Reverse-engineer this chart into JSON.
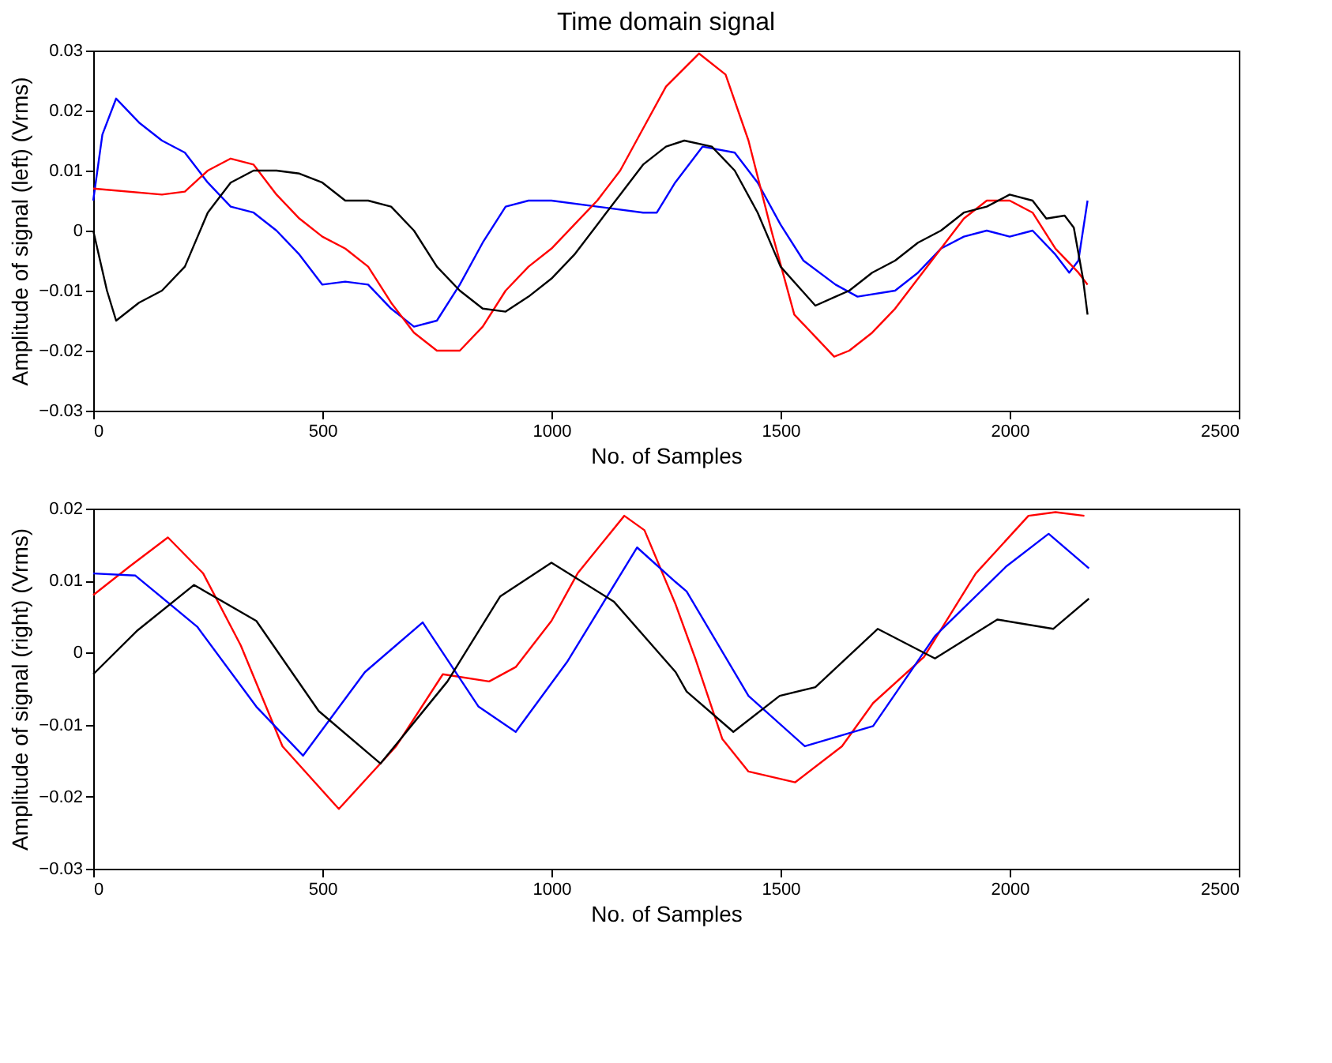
{
  "chart_data": [
    {
      "type": "line",
      "title": "Time domain signal",
      "xlabel": "No. of Samples",
      "ylabel": "Amplitude of signal (left) (Vrms)",
      "xlim": [
        0,
        2500
      ],
      "xticks": [
        0,
        500,
        1000,
        1500,
        2000,
        2500
      ],
      "ylim": [
        -0.03,
        0.03
      ],
      "yticks": [
        -0.03,
        -0.02,
        -0.01,
        0,
        0.01,
        0.02,
        0.03
      ],
      "grid": false,
      "legend": false,
      "line_style": "solid",
      "series": [
        {
          "color": "#0000ff",
          "x": [
            0,
            20,
            50,
            100,
            150,
            200,
            250,
            300,
            350,
            400,
            450,
            500,
            550,
            600,
            650,
            700,
            750,
            800,
            850,
            900,
            950,
            1000,
            1100,
            1200,
            1230,
            1270,
            1330,
            1400,
            1450,
            1500,
            1550,
            1620,
            1668,
            1750,
            1800,
            1850,
            1900,
            1950,
            2000,
            2050,
            2100,
            2130,
            2150,
            2170
          ],
          "values": [
            0.005,
            0.016,
            0.022,
            0.018,
            0.015,
            0.013,
            0.008,
            0.004,
            0.003,
            0.0,
            -0.004,
            -0.009,
            -0.0085,
            -0.009,
            -0.013,
            -0.016,
            -0.015,
            -0.009,
            -0.002,
            0.004,
            0.005,
            0.005,
            0.004,
            0.003,
            0.003,
            0.008,
            0.014,
            0.013,
            0.008,
            0.001,
            -0.005,
            -0.009,
            -0.011,
            -0.01,
            -0.007,
            -0.003,
            -0.001,
            0.0,
            -0.001,
            0.0,
            -0.004,
            -0.007,
            -0.005,
            0.005
          ]
        },
        {
          "color": "#ff0000",
          "x": [
            0,
            150,
            200,
            250,
            300,
            350,
            400,
            450,
            500,
            550,
            600,
            650,
            700,
            750,
            800,
            850,
            900,
            950,
            1000,
            1050,
            1100,
            1150,
            1200,
            1250,
            1322,
            1380,
            1430,
            1480,
            1530,
            1617,
            1650,
            1700,
            1750,
            1800,
            1850,
            1900,
            1950,
            2000,
            2050,
            2100,
            2150,
            2170
          ],
          "values": [
            0.007,
            0.006,
            0.0065,
            0.01,
            0.012,
            0.011,
            0.006,
            0.002,
            -0.001,
            -0.003,
            -0.006,
            -0.012,
            -0.017,
            -0.02,
            -0.02,
            -0.016,
            -0.01,
            -0.006,
            -0.003,
            0.001,
            0.005,
            0.01,
            0.017,
            0.024,
            0.0295,
            0.026,
            0.015,
            0.0,
            -0.014,
            -0.021,
            -0.02,
            -0.017,
            -0.013,
            -0.008,
            -0.003,
            0.002,
            0.005,
            0.005,
            0.003,
            -0.003,
            -0.007,
            -0.009
          ]
        },
        {
          "color": "#000000",
          "x": [
            0,
            30,
            50,
            100,
            150,
            200,
            250,
            300,
            350,
            400,
            450,
            500,
            550,
            600,
            650,
            700,
            750,
            800,
            850,
            900,
            950,
            1000,
            1050,
            1100,
            1150,
            1200,
            1250,
            1290,
            1350,
            1400,
            1450,
            1500,
            1576,
            1620,
            1650,
            1700,
            1750,
            1800,
            1850,
            1900,
            1950,
            2000,
            2050,
            2080,
            2120,
            2140,
            2160,
            2170
          ],
          "values": [
            0.0,
            -0.01,
            -0.015,
            -0.012,
            -0.01,
            -0.006,
            0.003,
            0.008,
            0.01,
            0.01,
            0.0095,
            0.008,
            0.005,
            0.005,
            0.004,
            0.0,
            -0.006,
            -0.01,
            -0.013,
            -0.0135,
            -0.011,
            -0.008,
            -0.004,
            0.001,
            0.006,
            0.011,
            0.014,
            0.015,
            0.014,
            0.01,
            0.003,
            -0.006,
            -0.0125,
            -0.011,
            -0.01,
            -0.007,
            -0.005,
            -0.002,
            0.0,
            0.003,
            0.004,
            0.006,
            0.005,
            0.002,
            0.0025,
            0.0005,
            -0.008,
            -0.014
          ]
        }
      ]
    },
    {
      "type": "line",
      "xlabel": "No. of Samples",
      "ylabel": "Amplitude of signal (right) (Vrms)",
      "xlim": [
        0,
        2500
      ],
      "xticks": [
        0,
        500,
        1000,
        1500,
        2000,
        2500
      ],
      "ylim": [
        -0.03,
        0.02
      ],
      "yticks": [
        -0.03,
        -0.02,
        -0.01,
        0,
        0.01,
        0.02
      ],
      "grid": false,
      "legend": false,
      "line_style": "solid",
      "series": [
        {
          "color": "#ff0000",
          "x": [
            0,
            80,
            163,
            240,
            322,
            413,
            536,
            661,
            763,
            864,
            922,
            1000,
            1057,
            1159,
            1203,
            1271,
            1315,
            1373,
            1430,
            1532,
            1634,
            1702,
            1813,
            1926,
            2041,
            2100,
            2163
          ],
          "values": [
            0.008,
            0.012,
            0.016,
            0.011,
            0.001,
            -0.013,
            -0.0217,
            -0.013,
            -0.003,
            -0.004,
            -0.002,
            0.0044,
            0.011,
            0.019,
            0.017,
            0.0067,
            -0.001,
            -0.012,
            -0.0165,
            -0.018,
            -0.013,
            -0.007,
            -0.0006,
            0.011,
            0.019,
            0.0195,
            0.019
          ]
        },
        {
          "color": "#0000ff",
          "x": [
            0,
            92,
            227,
            356,
            458,
            593,
            719,
            841,
            922,
            1034,
            1187,
            1271,
            1295,
            1430,
            1553,
            1702,
            1837,
            1993,
            2085,
            2173
          ],
          "values": [
            0.011,
            0.0107,
            0.0036,
            -0.0075,
            -0.0143,
            -0.0027,
            0.0042,
            -0.0075,
            -0.011,
            -0.0013,
            0.0146,
            0.0098,
            0.0085,
            -0.006,
            -0.013,
            -0.0102,
            0.0023,
            0.012,
            0.0165,
            0.0117
          ]
        },
        {
          "color": "#000000",
          "x": [
            0,
            95,
            220,
            356,
            492,
            627,
            773,
            888,
            1000,
            1136,
            1271,
            1295,
            1397,
            1498,
            1576,
            1712,
            1837,
            1973,
            2095,
            2173
          ],
          "values": [
            -0.003,
            0.003,
            0.0094,
            0.0044,
            -0.0081,
            -0.0154,
            -0.004,
            0.0078,
            0.0125,
            0.0071,
            -0.0027,
            -0.0054,
            -0.011,
            -0.006,
            -0.0048,
            0.0033,
            -0.0008,
            0.0046,
            0.0033,
            0.0075
          ]
        }
      ]
    }
  ]
}
